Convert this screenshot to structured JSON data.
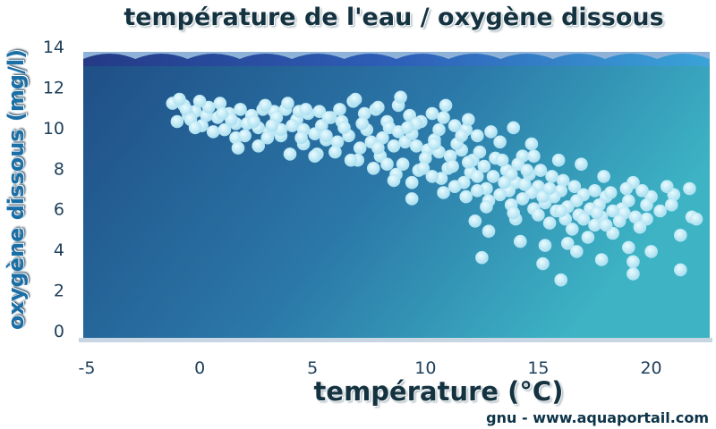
{
  "chart_data": {
    "type": "scatter",
    "title": "température de l'eau / oxygène dissous",
    "xlabel": "température (°C)",
    "ylabel": "oxygène dissous (mg/l)",
    "xlim": [
      -5,
      22
    ],
    "ylim": [
      0,
      14
    ],
    "xticks": [
      -5,
      0,
      5,
      10,
      15,
      20
    ],
    "yticks": [
      0,
      2,
      4,
      6,
      8,
      10,
      12,
      14
    ],
    "grid": false,
    "legend": "none",
    "colors": {
      "point": "#b7e6f4",
      "water_left": "#1d4f85",
      "water_right": "#3fb0c1"
    },
    "points": [
      [
        -1.2,
        11.2
      ],
      [
        -0.7,
        11.1
      ],
      [
        -0.2,
        10.8
      ],
      [
        0.3,
        10.6
      ],
      [
        0.8,
        10.5
      ],
      [
        1.3,
        10.7
      ],
      [
        1.8,
        10.9
      ],
      [
        2.3,
        10.6
      ],
      [
        2.8,
        10.9
      ],
      [
        3.3,
        10.8
      ],
      [
        3.8,
        10.9
      ],
      [
        4.3,
        10.4
      ],
      [
        4.8,
        10.7
      ],
      [
        5.3,
        10.8
      ],
      [
        5.8,
        10.5
      ],
      [
        6.3,
        10.3
      ],
      [
        6.8,
        11.3
      ],
      [
        7.3,
        10.7
      ],
      [
        7.8,
        10.9
      ],
      [
        8.3,
        10.3
      ],
      [
        8.8,
        11.1
      ],
      [
        9.3,
        10.6
      ],
      [
        9.8,
        10.3
      ],
      [
        10.3,
        10.7
      ],
      [
        10.8,
        10.5
      ],
      [
        11.3,
        10.1
      ],
      [
        11.8,
        9.9
      ],
      [
        12.3,
        9.6
      ],
      [
        13.3,
        9.3
      ],
      [
        14.3,
        8.6
      ],
      [
        -1.0,
        10.3
      ],
      [
        -0.5,
        10.6
      ],
      [
        0.1,
        10.1
      ],
      [
        0.6,
        9.8
      ],
      [
        1.1,
        9.9
      ],
      [
        1.6,
        10.2
      ],
      [
        2.1,
        10.2
      ],
      [
        2.6,
        10.0
      ],
      [
        3.1,
        9.8
      ],
      [
        3.6,
        9.6
      ],
      [
        4.1,
        10.1
      ],
      [
        4.6,
        9.9
      ],
      [
        5.1,
        9.7
      ],
      [
        5.6,
        9.4
      ],
      [
        6.1,
        9.3
      ],
      [
        6.6,
        9.6
      ],
      [
        7.1,
        9.0
      ],
      [
        7.6,
        9.3
      ],
      [
        8.1,
        9.5
      ],
      [
        8.6,
        9.1
      ],
      [
        9.1,
        9.3
      ],
      [
        9.6,
        9.1
      ],
      [
        10.1,
        8.9
      ],
      [
        10.6,
        8.8
      ],
      [
        11.1,
        8.6
      ],
      [
        11.6,
        8.9
      ],
      [
        12.1,
        8.4
      ],
      [
        12.6,
        8.1
      ],
      [
        13.1,
        8.5
      ],
      [
        13.6,
        7.9
      ],
      [
        14.1,
        8.2
      ],
      [
        14.6,
        7.7
      ],
      [
        15.1,
        7.9
      ],
      [
        15.6,
        7.6
      ],
      [
        16.1,
        7.4
      ],
      [
        -0.6,
        10.9
      ],
      [
        0.4,
        11.0
      ],
      [
        1.4,
        10.4
      ],
      [
        2.4,
        10.3
      ],
      [
        3.4,
        10.5
      ],
      [
        4.4,
        10.8
      ],
      [
        5.4,
        10.1
      ],
      [
        6.4,
        10.0
      ],
      [
        7.4,
        9.9
      ],
      [
        8.4,
        10.0
      ],
      [
        9.4,
        9.7
      ],
      [
        10.4,
        9.4
      ],
      [
        11.4,
        9.2
      ],
      [
        12.4,
        8.8
      ],
      [
        13.4,
        8.4
      ],
      [
        -0.4,
        10.4
      ],
      [
        1.6,
        9.5
      ],
      [
        2.6,
        9.1
      ],
      [
        3.6,
        9.9
      ],
      [
        4.6,
        9.2
      ],
      [
        5.2,
        8.7
      ],
      [
        6.0,
        8.8
      ],
      [
        7.0,
        8.4
      ],
      [
        8.0,
        8.6
      ],
      [
        9.0,
        8.2
      ],
      [
        10.0,
        8.5
      ],
      [
        11.0,
        8.0
      ],
      [
        12.0,
        7.8
      ],
      [
        13.0,
        7.6
      ],
      [
        14.0,
        7.3
      ],
      [
        15.0,
        7.1
      ],
      [
        16.0,
        6.9
      ],
      [
        17.0,
        6.7
      ],
      [
        18.0,
        6.6
      ],
      [
        19.0,
        6.4
      ],
      [
        20.0,
        6.6
      ],
      [
        21.0,
        6.7
      ],
      [
        4.0,
        8.7
      ],
      [
        5.1,
        8.6
      ],
      [
        7.7,
        8.0
      ],
      [
        8.7,
        7.7
      ],
      [
        9.7,
        7.9
      ],
      [
        10.7,
        7.5
      ],
      [
        11.7,
        7.3
      ],
      [
        12.7,
        7.0
      ],
      [
        13.7,
        6.9
      ],
      [
        14.7,
        6.8
      ],
      [
        15.7,
        6.6
      ],
      [
        16.7,
        6.4
      ],
      [
        17.7,
        6.2
      ],
      [
        18.7,
        6.0
      ],
      [
        8.6,
        7.4
      ],
      [
        9.4,
        7.3
      ],
      [
        10.3,
        7.6
      ],
      [
        10.8,
        6.8
      ],
      [
        11.8,
        6.6
      ],
      [
        12.8,
        6.4
      ],
      [
        13.8,
        6.2
      ],
      [
        14.8,
        6.0
      ],
      [
        15.8,
        5.9
      ],
      [
        16.8,
        5.7
      ],
      [
        17.8,
        5.6
      ],
      [
        18.8,
        5.8
      ],
      [
        19.8,
        5.5
      ],
      [
        21.8,
        5.6
      ],
      [
        9.4,
        6.5
      ],
      [
        11.3,
        7.1
      ],
      [
        12.3,
        6.9
      ],
      [
        13.3,
        6.7
      ],
      [
        14.3,
        6.5
      ],
      [
        15.3,
        6.3
      ],
      [
        16.3,
        6.1
      ],
      [
        17.3,
        6.0
      ],
      [
        18.3,
        5.9
      ],
      [
        19.3,
        5.6
      ],
      [
        12.2,
        5.4
      ],
      [
        14.0,
        5.5
      ],
      [
        15.5,
        5.3
      ],
      [
        16.5,
        5.0
      ],
      [
        17.5,
        5.2
      ],
      [
        18.6,
        5.4
      ],
      [
        19.5,
        5.1
      ],
      [
        21.3,
        4.7
      ],
      [
        12.8,
        4.9
      ],
      [
        14.2,
        4.4
      ],
      [
        15.3,
        4.2
      ],
      [
        16.3,
        4.3
      ],
      [
        17.2,
        4.6
      ],
      [
        18.3,
        4.8
      ],
      [
        19.0,
        4.1
      ],
      [
        20.0,
        3.9
      ],
      [
        16.7,
        3.9
      ],
      [
        17.8,
        3.5
      ],
      [
        19.2,
        3.4
      ],
      [
        12.5,
        3.6
      ],
      [
        15.2,
        3.3
      ],
      [
        19.2,
        2.8
      ],
      [
        21.3,
        3.0
      ],
      [
        16.0,
        2.5
      ],
      [
        19.2,
        7.3
      ],
      [
        20.7,
        7.1
      ],
      [
        21.7,
        7.0
      ],
      [
        22.0,
        5.5
      ],
      [
        -0.9,
        11.4
      ],
      [
        0.9,
        11.2
      ],
      [
        2.9,
        11.1
      ],
      [
        3.9,
        11.2
      ],
      [
        6.9,
        11.4
      ],
      [
        8.9,
        11.5
      ],
      [
        7.9,
        11.0
      ],
      [
        10.9,
        11.1
      ],
      [
        11.9,
        10.4
      ],
      [
        13.9,
        10.0
      ],
      [
        12.9,
        9.8
      ],
      [
        11.6,
        9.6
      ],
      [
        10.6,
        9.9
      ],
      [
        9.6,
        10.2
      ],
      [
        8.8,
        9.8
      ],
      [
        14.7,
        9.2
      ],
      [
        15.9,
        8.4
      ],
      [
        13.8,
        7.7
      ],
      [
        14.8,
        8.6
      ],
      [
        16.9,
        8.2
      ],
      [
        17.9,
        7.6
      ],
      [
        18.9,
        7.0
      ],
      [
        19.8,
        6.2
      ],
      [
        20.9,
        6.2
      ],
      [
        17.6,
        5.8
      ],
      [
        16.2,
        5.5
      ],
      [
        15.2,
        6.6
      ],
      [
        14.4,
        7.2
      ],
      [
        11.9,
        8.3
      ],
      [
        10.4,
        9.2
      ],
      [
        9.2,
        10.0
      ],
      [
        7.2,
        10.2
      ],
      [
        6.2,
        10.9
      ],
      [
        5.7,
        10.5
      ],
      [
        4.7,
        10.9
      ],
      [
        3.2,
        10.1
      ],
      [
        2.0,
        9.6
      ],
      [
        1.0,
        10.7
      ],
      [
        0.0,
        11.3
      ],
      [
        -0.2,
        10.0
      ],
      [
        1.7,
        9.0
      ],
      [
        3.0,
        9.5
      ],
      [
        4.5,
        9.5
      ],
      [
        5.6,
        9.6
      ],
      [
        6.7,
        8.4
      ],
      [
        7.9,
        9.0
      ],
      [
        8.3,
        8.2
      ],
      [
        9.9,
        8.0
      ],
      [
        11.2,
        8.1
      ],
      [
        12.3,
        7.6
      ],
      [
        13.5,
        7.3
      ],
      [
        14.5,
        7.9
      ],
      [
        15.5,
        7.0
      ],
      [
        16.6,
        7.1
      ],
      [
        17.5,
        6.9
      ],
      [
        18.2,
        6.8
      ],
      [
        19.6,
        6.9
      ],
      [
        20.4,
        5.9
      ],
      [
        12.7,
        6.1
      ],
      [
        13.9,
        5.8
      ],
      [
        15.0,
        5.7
      ],
      [
        16.0,
        5.9
      ],
      [
        17.0,
        5.5
      ],
      [
        18.0,
        5.2
      ]
    ]
  },
  "footer": {
    "credit": "gnu - www.aquaportail.com"
  }
}
